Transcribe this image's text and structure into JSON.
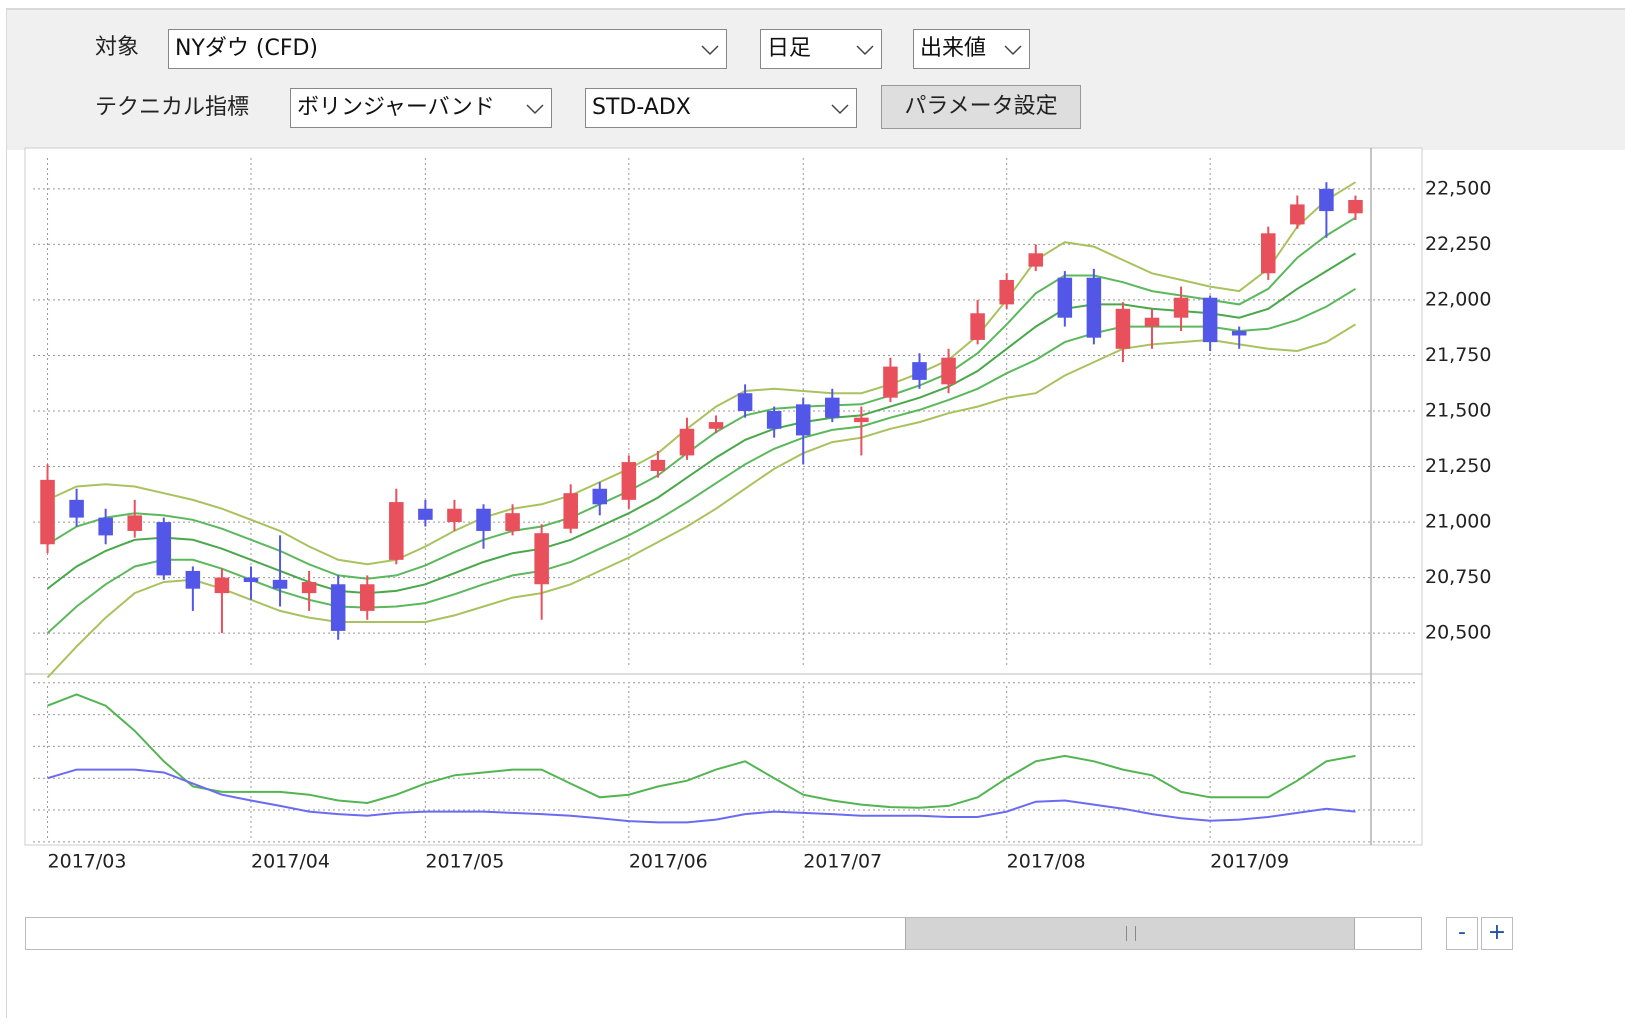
{
  "controls": {
    "target_label": "対象",
    "target": "NYダウ (CFD)",
    "period": "日足",
    "price_type": "出来値",
    "indicator_label": "テクニカル指標",
    "indicator": "ボリンジャーバンド",
    "sub_indicator": "STD-ADX",
    "param_button": "パラメータ設定"
  },
  "zoom": {
    "out": "-",
    "in": "+"
  },
  "chart_data": [
    {
      "type": "candlestick",
      "categories": [
        "2017/03",
        null,
        null,
        null,
        null,
        null,
        null,
        "2017/04",
        null,
        null,
        null,
        null,
        null,
        "2017/05",
        null,
        null,
        null,
        null,
        null,
        null,
        "2017/06",
        null,
        null,
        null,
        null,
        null,
        "2017/07",
        null,
        null,
        null,
        null,
        null,
        null,
        "2017/08",
        null,
        null,
        null,
        null,
        null,
        null,
        "2017/09",
        null,
        null,
        null,
        null,
        null
      ],
      "open": [
        20900,
        21100,
        21020,
        20960,
        21000,
        20780,
        20680,
        20750,
        20740,
        20680,
        20720,
        20600,
        20830,
        21060,
        21000,
        21060,
        20960,
        20720,
        20970,
        21150,
        21100,
        21230,
        21300,
        21420,
        21580,
        21500,
        21530,
        21560,
        21450,
        21560,
        21720,
        21620,
        21820,
        21980,
        22150,
        22100,
        22100,
        21780,
        21880,
        21920,
        22010,
        21860,
        22120,
        22340,
        22500,
        22390
      ],
      "high": [
        21260,
        21150,
        21060,
        21100,
        21020,
        20800,
        20790,
        20800,
        20940,
        20780,
        20760,
        20760,
        21150,
        21100,
        21100,
        21080,
        21080,
        20990,
        21170,
        21180,
        21300,
        21320,
        21470,
        21480,
        21620,
        21520,
        21560,
        21600,
        21520,
        21740,
        21760,
        21780,
        22000,
        22120,
        22250,
        22130,
        22140,
        21990,
        21960,
        22060,
        22020,
        21880,
        22330,
        22470,
        22530,
        22470
      ],
      "low": [
        20860,
        20980,
        20900,
        20930,
        20740,
        20600,
        20500,
        20650,
        20620,
        20600,
        20470,
        20560,
        20810,
        20980,
        20960,
        20880,
        20940,
        20560,
        20950,
        21030,
        21060,
        21200,
        21280,
        21400,
        21470,
        21380,
        21260,
        21450,
        21300,
        21540,
        21600,
        21580,
        21800,
        21960,
        22130,
        21880,
        21800,
        21720,
        21780,
        21860,
        21770,
        21780,
        22090,
        22320,
        22280,
        22360
      ],
      "close": [
        21190,
        21020,
        20940,
        21030,
        20760,
        20700,
        20750,
        20730,
        20700,
        20730,
        20510,
        20720,
        21090,
        21010,
        21060,
        20960,
        21040,
        20950,
        21130,
        21080,
        21270,
        21280,
        21420,
        21450,
        21500,
        21420,
        21390,
        21470,
        21470,
        21700,
        21640,
        21740,
        21940,
        22090,
        22210,
        21920,
        21830,
        21960,
        21920,
        22010,
        21810,
        21840,
        22300,
        22430,
        22400,
        22450
      ],
      "up_color": "#e8505b",
      "down_color": "#5257e8",
      "series": [
        {
          "color": "#a9c25e",
          "values": [
            21100,
            21160,
            21170,
            21160,
            21130,
            21100,
            21060,
            21010,
            20960,
            20890,
            20830,
            20810,
            20830,
            20890,
            20960,
            21020,
            21060,
            21080,
            21120,
            21180,
            21240,
            21310,
            21420,
            21520,
            21590,
            21600,
            21590,
            21580,
            21580,
            21620,
            21670,
            21730,
            21840,
            22000,
            22180,
            22260,
            22240,
            22180,
            22120,
            22090,
            22060,
            22040,
            22140,
            22330,
            22450,
            22530
          ]
        },
        {
          "color": "#5cb85c",
          "values": [
            20900,
            20980,
            21020,
            21040,
            21030,
            21010,
            20970,
            20920,
            20870,
            20810,
            20760,
            20745,
            20760,
            20805,
            20865,
            20920,
            20960,
            20980,
            21020,
            21080,
            21140,
            21210,
            21310,
            21405,
            21480,
            21510,
            21520,
            21525,
            21530,
            21570,
            21615,
            21670,
            21760,
            21890,
            22030,
            22110,
            22110,
            22080,
            22040,
            22020,
            22000,
            21980,
            22050,
            22190,
            22290,
            22370
          ]
        },
        {
          "color": "#4aa84a",
          "values": [
            20700,
            20800,
            20870,
            20920,
            20930,
            20920,
            20880,
            20830,
            20780,
            20730,
            20690,
            20680,
            20690,
            20720,
            20770,
            20820,
            20860,
            20880,
            20920,
            20980,
            21040,
            21110,
            21200,
            21290,
            21370,
            21420,
            21450,
            21470,
            21480,
            21520,
            21560,
            21610,
            21680,
            21780,
            21880,
            21960,
            21980,
            21980,
            21960,
            21950,
            21940,
            21920,
            21960,
            22050,
            22130,
            22210
          ]
        },
        {
          "color": "#5cb85c",
          "values": [
            20500,
            20620,
            20720,
            20800,
            20830,
            20830,
            20790,
            20740,
            20690,
            20650,
            20620,
            20615,
            20620,
            20635,
            20675,
            20720,
            20760,
            20780,
            20820,
            20880,
            20940,
            21010,
            21090,
            21175,
            21260,
            21330,
            21380,
            21415,
            21430,
            21470,
            21505,
            21550,
            21600,
            21670,
            21730,
            21810,
            21850,
            21880,
            21880,
            21880,
            21880,
            21860,
            21870,
            21910,
            21970,
            22050
          ]
        },
        {
          "color": "#a9c25e",
          "values": [
            20300,
            20440,
            20570,
            20680,
            20730,
            20740,
            20700,
            20650,
            20600,
            20570,
            20550,
            20550,
            20550,
            20550,
            20580,
            20620,
            20660,
            20680,
            20720,
            20780,
            20840,
            20910,
            20980,
            21060,
            21150,
            21240,
            21310,
            21360,
            21380,
            21420,
            21450,
            21490,
            21520,
            21560,
            21580,
            21660,
            21720,
            21780,
            21800,
            21810,
            21820,
            21800,
            21780,
            21770,
            21810,
            21890
          ]
        }
      ],
      "ylim": [
        20325,
        22675
      ],
      "yticks": [
        {
          "value": 20500,
          "label": "20,500"
        },
        {
          "value": 20750,
          "label": "20,750"
        },
        {
          "value": 21000,
          "label": "21,000"
        },
        {
          "value": 21250,
          "label": "21,250"
        },
        {
          "value": 21500,
          "label": "21,500"
        },
        {
          "value": 21750,
          "label": "21,750"
        },
        {
          "value": 22000,
          "label": "22,000"
        },
        {
          "value": 22250,
          "label": "22,250"
        },
        {
          "value": 22500,
          "label": "22,500"
        }
      ],
      "grid": true
    },
    {
      "type": "line",
      "series": [
        {
          "color": "#52b552",
          "values": [
            42.8,
            46.3,
            42.8,
            34.9,
            25.3,
            17.4,
            15.7,
            15.7,
            15.7,
            14.8,
            13.0,
            12.2,
            14.8,
            18.3,
            20.9,
            21.8,
            22.7,
            22.7,
            18.3,
            14.0,
            14.8,
            17.4,
            19.2,
            22.7,
            25.3,
            20.0,
            14.8,
            13.0,
            11.7,
            10.9,
            10.7,
            11.3,
            14.0,
            20.0,
            25.3,
            27.0,
            25.3,
            22.7,
            20.9,
            15.7,
            14.0,
            14.0,
            14.0,
            19.2,
            25.3,
            27.0
          ]
        },
        {
          "color": "#6b6bf2",
          "values": [
            20.0,
            22.7,
            22.7,
            22.7,
            21.8,
            18.3,
            14.8,
            13.0,
            11.3,
            9.5,
            8.7,
            8.2,
            9.1,
            9.5,
            9.5,
            9.5,
            9.1,
            8.7,
            8.2,
            7.4,
            6.5,
            6.1,
            6.1,
            7.0,
            8.7,
            9.5,
            9.1,
            8.7,
            8.2,
            8.2,
            8.2,
            7.8,
            7.8,
            9.5,
            12.6,
            13.0,
            11.7,
            10.4,
            8.7,
            7.4,
            6.6,
            7.0,
            7.8,
            9.1,
            10.4,
            9.5
          ]
        }
      ],
      "ylim": [
        -1,
        51.5
      ],
      "yticks": [
        0,
        10,
        20,
        30,
        40,
        50
      ],
      "grid": true
    }
  ]
}
